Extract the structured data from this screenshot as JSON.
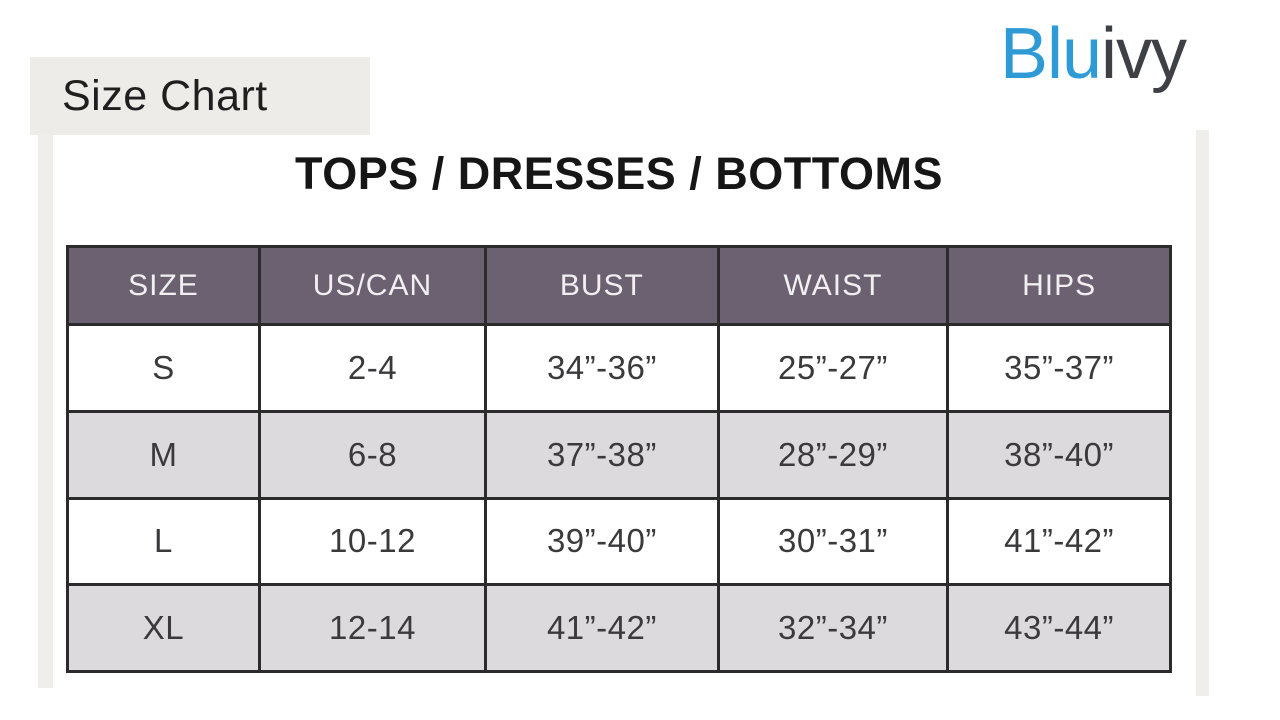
{
  "page": {
    "label": "Size Chart"
  },
  "logo": {
    "part1": "Blu",
    "part2": "ivy",
    "part1_color": "#2E9AD6",
    "part2_color": "#3E4045"
  },
  "colors": {
    "header_bg": "#6B6170",
    "header_text": "#F2EFF2",
    "row_alt_bg": "#DCDADD",
    "border": "#2B2B2B",
    "label_box_bg": "#EDECE9"
  },
  "chart_data": {
    "type": "table",
    "title": "TOPS / DRESSES / BOTTOMS",
    "columns": [
      "SIZE",
      "US/CAN",
      "BUST",
      "WAIST",
      "HIPS"
    ],
    "rows": [
      [
        "S",
        "2-4",
        "34”-36”",
        "25”-27”",
        "35”-37”"
      ],
      [
        "M",
        "6-8",
        "37”-38”",
        "28”-29”",
        "38”-40”"
      ],
      [
        "L",
        "10-12",
        "39”-40”",
        "30”-31”",
        "41”-42”"
      ],
      [
        "XL",
        "12-14",
        "41”-42”",
        "32”-34”",
        "43”-44”"
      ]
    ]
  }
}
